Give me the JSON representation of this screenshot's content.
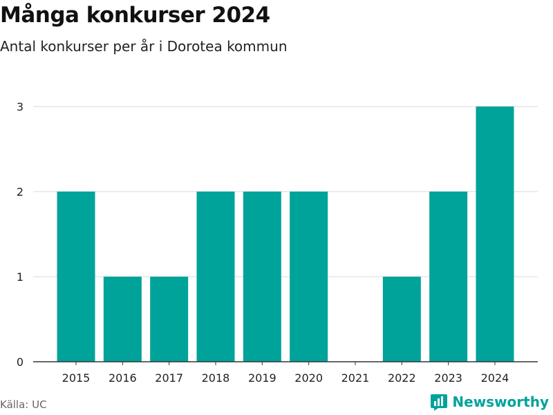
{
  "header": {
    "title": "Många konkurser 2024",
    "subtitle": "Antal konkurser per år i Dorotea kommun"
  },
  "footer": {
    "source": "Källa: UC",
    "brand": "Newsworthy"
  },
  "colors": {
    "bar": "#00A39A",
    "grid": "#D9D9D9",
    "axis": "#333333",
    "brand": "#00A39A"
  },
  "chart_data": {
    "type": "bar",
    "categories": [
      "2015",
      "2016",
      "2017",
      "2018",
      "2019",
      "2020",
      "2021",
      "2022",
      "2023",
      "2024"
    ],
    "values": [
      2,
      1,
      1,
      2,
      2,
      2,
      0,
      1,
      2,
      3
    ],
    "yticks": [
      0,
      1,
      2,
      3
    ],
    "ylim": [
      0,
      3
    ],
    "grid": true,
    "legend": "none"
  }
}
